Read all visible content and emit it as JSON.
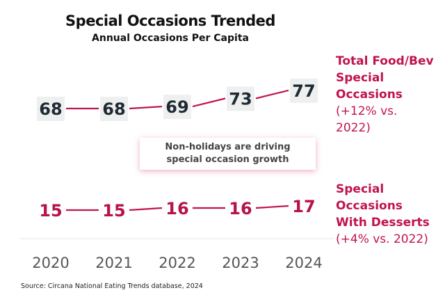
{
  "chart_data": {
    "type": "line",
    "title": "Special Occasions Trended",
    "subtitle": "Annual Occasions Per Capita",
    "categories": [
      "2020",
      "2021",
      "2022",
      "2023",
      "2024"
    ],
    "series": [
      {
        "name": "Total Food/Bev Special Occasions",
        "values": [
          68,
          68,
          69,
          73,
          77
        ],
        "color": "#c0144c",
        "label_color": "#1f2a33",
        "annotation": [
          "Total Food/Bev",
          "Special",
          "Occasions",
          "(+12% vs.",
          "2022)"
        ]
      },
      {
        "name": "Special Occasions With Desserts",
        "values": [
          15,
          15,
          16,
          16,
          17
        ],
        "color": "#c0144c",
        "label_color": "#b5134a",
        "annotation": [
          "Special",
          "Occasions",
          "With Desserts",
          "(+4% vs. 2022)"
        ]
      }
    ],
    "callout": [
      "Non-holidays are driving",
      "special occasion growth"
    ],
    "source": "Source: Circana National Eating Trends database, 2024",
    "grid": false
  }
}
